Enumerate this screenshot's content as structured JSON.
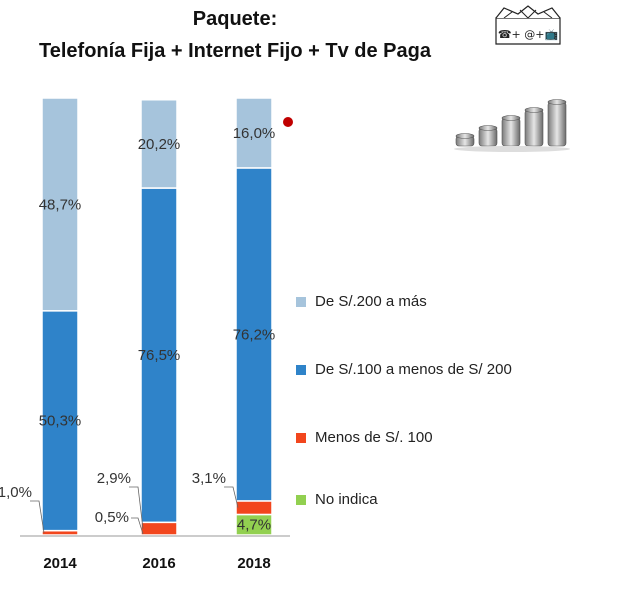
{
  "title": {
    "line1": "Paquete:",
    "line2": "Telefonía Fija + Internet Fijo + Tv de Paga"
  },
  "icons": {
    "services_box": "telephone-internet-tv-box-icon",
    "services_box_text": "☎+ @+📺",
    "coins": "coin-stacks-icon",
    "marker": "red-dot-marker"
  },
  "colors": {
    "de_200_mas": "#a6c4dc",
    "de_100_a_200": "#2f83c9",
    "menos_100": "#f2461d",
    "no_indica": "#92d050",
    "marker": "#c00000"
  },
  "chart_data": {
    "type": "bar",
    "stacked": true,
    "normalized_percent": true,
    "title": "Paquete: Telefonía Fija + Internet Fijo + Tv de Paga",
    "xlabel": "",
    "ylabel": "",
    "ylim": [
      0,
      100
    ],
    "categories": [
      "2014",
      "2016",
      "2018"
    ],
    "series": [
      {
        "name": "No indica",
        "color": "#92d050",
        "values": [
          null,
          null,
          4.7
        ],
        "labels": [
          "",
          "",
          "4,7%"
        ]
      },
      {
        "name": "Menos de S/. 100",
        "color": "#f2461d",
        "values": [
          1.0,
          2.9,
          3.1
        ],
        "labels": [
          "1,0%",
          "2,9%",
          "3,1%"
        ]
      },
      {
        "name": "De S/.100 a menos de S/ 200",
        "color": "#2f83c9",
        "values": [
          50.3,
          76.5,
          76.2
        ],
        "labels": [
          "50,3%",
          "76,5%",
          "76,2%"
        ]
      },
      {
        "name": "De S/.200 a más",
        "color": "#a6c4dc",
        "values": [
          48.7,
          20.2,
          16.0
        ],
        "labels": [
          "48,7%",
          "20,2%",
          "16,0%"
        ]
      }
    ],
    "extra_labels": [
      {
        "category": "2016",
        "text": "0,5%"
      }
    ],
    "legend": {
      "position": "right",
      "order": [
        "De S/.200 a más",
        "De S/.100 a menos de S/ 200",
        "Menos de S/. 100",
        "No indica"
      ]
    }
  }
}
